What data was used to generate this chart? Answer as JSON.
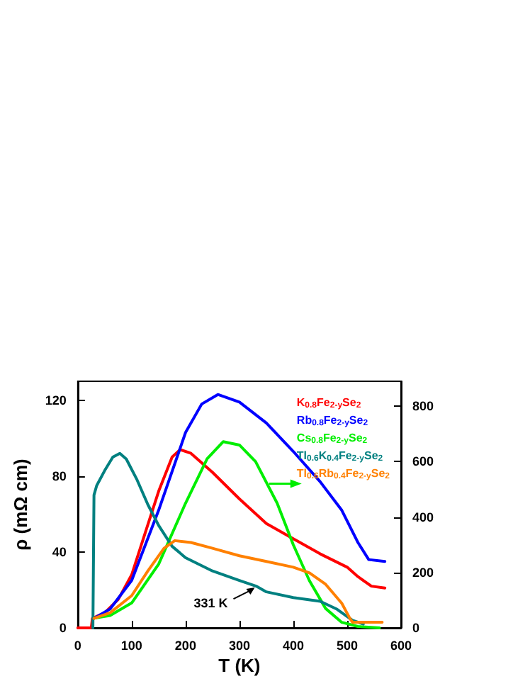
{
  "chart_data": {
    "type": "line",
    "xlabel": "T (K)",
    "ylabel": "ρ (mΩ cm)",
    "xlim": [
      0,
      600
    ],
    "xticks": [
      0,
      100,
      200,
      300,
      400,
      500,
      600
    ],
    "ylim": [
      0,
      130
    ],
    "yticks": [
      0,
      40,
      80,
      120
    ],
    "y2lim": [
      0,
      890
    ],
    "y2ticks": [
      0,
      200,
      400,
      600,
      800
    ],
    "grid": false,
    "legend": "top right",
    "marker": "none",
    "line_style": "solid",
    "series": [
      {
        "name": "K$_{0.8}$Fe$_{2-y}$Se$_{2}$",
        "color": "#ff0000",
        "x": [
          0,
          25,
          27,
          50,
          75,
          100,
          125,
          150,
          175,
          190,
          210,
          250,
          300,
          350,
          400,
          450,
          500,
          520,
          545,
          570
        ],
        "values": [
          0,
          0,
          5,
          8,
          15,
          28,
          50,
          72,
          90,
          94,
          92,
          82,
          68,
          55,
          47,
          39,
          32,
          27,
          22,
          21
        ]
      },
      {
        "name": "Rb$_{0.8}$Fe$_{2-y}$Se$_{2}$",
        "color": "#0000ff",
        "x": [
          30,
          60,
          100,
          150,
          200,
          230,
          260,
          300,
          350,
          400,
          450,
          490,
          520,
          540,
          570
        ],
        "values": [
          5,
          10,
          25,
          62,
          103,
          118,
          123,
          119,
          108,
          93,
          77,
          62,
          45,
          36,
          35
        ]
      },
      {
        "name": "Cs$_{0.8}$Fe$_{2-y}$Se$_{2}$",
        "color": "#00ee00",
        "axis": "y2",
        "x": [
          30,
          60,
          100,
          150,
          200,
          240,
          270,
          300,
          330,
          370,
          400,
          430,
          460,
          490,
          520,
          560
        ],
        "values": [
          35,
          45,
          90,
          230,
          450,
          610,
          672,
          660,
          600,
          450,
          300,
          170,
          70,
          20,
          5,
          0
        ]
      },
      {
        "name": "Tl$_{0.6}$K$_{0.4}$Fe$_{2-y}$Se$_{2}$",
        "color": "#008080",
        "x": [
          28,
          30,
          35,
          50,
          65,
          78,
          90,
          110,
          130,
          150,
          175,
          200,
          250,
          300,
          331,
          350,
          400,
          450,
          480,
          510,
          530
        ],
        "values": [
          0,
          70,
          75,
          83,
          90,
          92,
          89,
          78,
          65,
          54,
          43,
          37,
          30,
          25,
          22,
          19,
          16,
          14,
          10,
          4,
          2
        ]
      },
      {
        "name": "Tl$_{0.6}$Rb$_{0.4}$Fe$_{2-y}$Se$_{2}$",
        "color": "#ff8000",
        "x": [
          30,
          60,
          100,
          130,
          160,
          180,
          210,
          250,
          300,
          350,
          400,
          430,
          460,
          490,
          505,
          510,
          565
        ],
        "values": [
          5,
          8,
          17,
          30,
          42,
          46,
          45,
          42,
          38,
          35,
          32,
          29,
          23,
          13,
          5,
          3,
          3
        ]
      }
    ],
    "annotations": [
      {
        "text": "331 K",
        "x": 331,
        "y": 22
      }
    ]
  }
}
